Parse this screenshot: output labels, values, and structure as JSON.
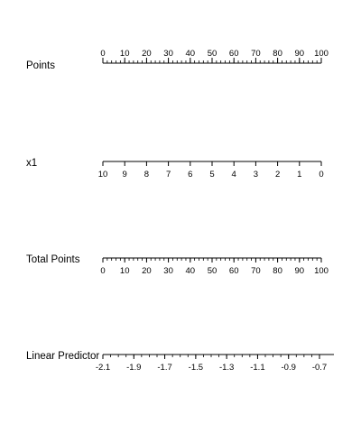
{
  "chart_data": {
    "type": "nomogram",
    "scales": [
      {
        "label": "Points",
        "labels_position": "above",
        "range": [
          0,
          100
        ],
        "major_ticks": [
          0,
          10,
          20,
          30,
          40,
          50,
          60,
          70,
          80,
          90,
          100
        ],
        "tick_labels": [
          "0",
          "10",
          "20",
          "30",
          "40",
          "50",
          "60",
          "70",
          "80",
          "90",
          "100"
        ],
        "minor_step": 2
      },
      {
        "label": "x1",
        "labels_position": "below",
        "range": [
          10,
          0
        ],
        "major_ticks": [
          10,
          9,
          8,
          7,
          6,
          5,
          4,
          3,
          2,
          1,
          0
        ],
        "tick_labels": [
          "10",
          "9",
          "8",
          "7",
          "6",
          "5",
          "4",
          "3",
          "2",
          "1",
          "0"
        ]
      },
      {
        "label": "Total Points",
        "labels_position": "below",
        "range": [
          0,
          100
        ],
        "major_ticks": [
          0,
          10,
          20,
          30,
          40,
          50,
          60,
          70,
          80,
          90,
          100
        ],
        "tick_labels": [
          "0",
          "10",
          "20",
          "30",
          "40",
          "50",
          "60",
          "70",
          "80",
          "90",
          "100"
        ],
        "minor_step": 2
      },
      {
        "label": "Linear Predictor",
        "labels_position": "below",
        "range": [
          -2.1,
          -0.7
        ],
        "major_ticks": [
          -2.1,
          -1.9,
          -1.7,
          -1.5,
          -1.3,
          -1.1,
          -0.9,
          -0.7
        ],
        "tick_labels": [
          "-2.1",
          "-1.9",
          "-1.7",
          "-1.5",
          "-1.3",
          "-1.1",
          "-0.9",
          "-0.7"
        ],
        "minor_step": 0.05
      }
    ]
  }
}
